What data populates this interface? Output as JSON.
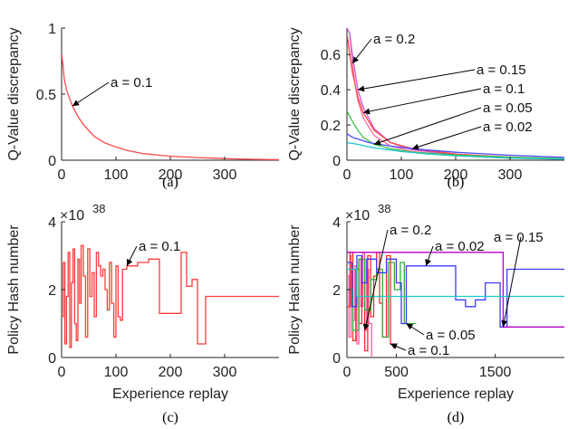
{
  "chart_data": [
    {
      "id": "a",
      "type": "line",
      "title": "(a)",
      "xlabel": "",
      "ylabel": "Q-Value discrepancy",
      "xlim": [
        0,
        400
      ],
      "ylim": [
        0,
        1
      ],
      "xticks": [
        "0",
        "100",
        "200",
        "300"
      ],
      "yticks": [
        "0",
        "0.5",
        "1"
      ],
      "grid": false,
      "series": [
        {
          "name": "a = 0.1",
          "color": "#ff4a4a",
          "x": [
            0,
            2,
            5,
            10,
            20,
            30,
            40,
            60,
            80,
            100,
            120,
            150,
            200,
            250,
            300,
            350,
            400
          ],
          "y": [
            0.8,
            0.74,
            0.61,
            0.52,
            0.41,
            0.33,
            0.27,
            0.18,
            0.13,
            0.1,
            0.075,
            0.05,
            0.03,
            0.02,
            0.012,
            0.007,
            0.004
          ]
        }
      ],
      "annotations": [
        {
          "text": "a = 0.1",
          "target_series": 0
        }
      ]
    },
    {
      "id": "b",
      "type": "line",
      "title": "(b)",
      "xlabel": "",
      "ylabel": "Q-Value discrepancy",
      "xlim": [
        0,
        400
      ],
      "ylim": [
        0,
        0.75
      ],
      "xticks": [
        "0",
        "100",
        "200",
        "300"
      ],
      "yticks": [
        "0",
        "0.2",
        "0.4",
        "0.6"
      ],
      "grid": false,
      "series": [
        {
          "name": "a = 0.2",
          "color": "#ff6e9a",
          "x": [
            0,
            5,
            10,
            15,
            20,
            30,
            50,
            80,
            120,
            200,
            300,
            400
          ],
          "y": [
            0.75,
            0.72,
            0.55,
            0.43,
            0.34,
            0.24,
            0.14,
            0.08,
            0.05,
            0.025,
            0.012,
            0.005
          ]
        },
        {
          "name": "a = 0.15",
          "color": "#c85adb",
          "x": [
            0,
            5,
            10,
            20,
            30,
            50,
            80,
            120,
            200,
            300,
            400
          ],
          "y": [
            0.75,
            0.72,
            0.6,
            0.4,
            0.3,
            0.18,
            0.1,
            0.06,
            0.03,
            0.015,
            0.006
          ]
        },
        {
          "name": "a = 0.1",
          "color": "#ff4444",
          "x": [
            0,
            5,
            10,
            20,
            30,
            50,
            80,
            120,
            200,
            300,
            400
          ],
          "y": [
            0.72,
            0.6,
            0.5,
            0.36,
            0.27,
            0.17,
            0.1,
            0.065,
            0.035,
            0.018,
            0.008
          ]
        },
        {
          "name": "a = 0.05",
          "color": "#3ec24a",
          "x": [
            0,
            5,
            10,
            20,
            30,
            50,
            80,
            120,
            200,
            300,
            400
          ],
          "y": [
            0.28,
            0.25,
            0.22,
            0.17,
            0.13,
            0.09,
            0.065,
            0.045,
            0.03,
            0.017,
            0.01
          ]
        },
        {
          "name": "a = 0.02",
          "color": "#4a4aff",
          "x": [
            0,
            10,
            20,
            40,
            60,
            80,
            120,
            160,
            200,
            300,
            400
          ],
          "y": [
            0.15,
            0.13,
            0.12,
            0.1,
            0.09,
            0.08,
            0.065,
            0.055,
            0.045,
            0.028,
            0.016
          ]
        },
        {
          "name": "",
          "color": "#1fc7c7",
          "x": [
            0,
            20,
            50,
            100,
            150,
            200,
            300,
            400
          ],
          "y": [
            0.1,
            0.09,
            0.07,
            0.05,
            0.035,
            0.025,
            0.012,
            0.006
          ]
        }
      ],
      "annotations": [
        {
          "text": "a = 0.2",
          "target_series": 0
        },
        {
          "text": "a = 0.15",
          "target_series": 1
        },
        {
          "text": "a = 0.1",
          "target_series": 2
        },
        {
          "text": "a = 0.05",
          "target_series": 3
        },
        {
          "text": "a = 0.02",
          "target_series": 4
        }
      ]
    },
    {
      "id": "c",
      "type": "line",
      "title": "(c)",
      "xlabel": "Experience replay",
      "ylabel": "Policy Hash number",
      "y_exponent": "38",
      "y_exponent_base": "×10",
      "xlim": [
        0,
        400
      ],
      "ylim": [
        0,
        4
      ],
      "xticks": [
        "0",
        "100",
        "200",
        "300"
      ],
      "yticks": [
        "0",
        "2",
        "4"
      ],
      "grid": false,
      "series": [
        {
          "name": "a = 0.1",
          "color": "#ff3c3c",
          "step": true,
          "x": [
            0,
            3,
            6,
            9,
            12,
            15,
            18,
            21,
            24,
            27,
            30,
            33,
            36,
            40,
            44,
            48,
            52,
            56,
            60,
            64,
            68,
            72,
            76,
            80,
            84,
            88,
            92,
            96,
            100,
            104,
            108,
            112,
            120,
            140,
            160,
            180,
            200,
            220,
            230,
            235,
            240,
            250,
            260,
            265,
            270,
            280,
            290,
            300,
            400
          ],
          "y": [
            1.2,
            2.8,
            0.4,
            1.8,
            3.1,
            0.3,
            2.2,
            3.2,
            1.0,
            0.5,
            2.9,
            1.6,
            3.3,
            2.4,
            0.6,
            3.2,
            1.8,
            2.5,
            1.2,
            3.1,
            2.7,
            2.4,
            2.6,
            2.0,
            1.4,
            2.8,
            1.6,
            0.6,
            2.7,
            1.2,
            1.1,
            2.6,
            2.7,
            2.8,
            2.9,
            1.3,
            1.3,
            3.1,
            2.1,
            2.1,
            2.3,
            0.4,
            0.4,
            1.8,
            1.8,
            1.8,
            1.8,
            1.8,
            1.8
          ]
        }
      ],
      "annotations": [
        {
          "text": "a = 0.1",
          "target_series": 0
        }
      ]
    },
    {
      "id": "d",
      "type": "line",
      "title": "(d)",
      "xlabel": "Experience replay",
      "ylabel": "Policy Hash number",
      "y_exponent": "38",
      "y_exponent_base": "×10",
      "xlim": [
        0,
        2200
      ],
      "ylim": [
        0,
        4
      ],
      "xticks": [
        "0",
        "500",
        "1500"
      ],
      "yticks": [
        "0",
        "2",
        "4"
      ],
      "grid": false,
      "series": [
        {
          "name": "a = 0.2",
          "color": "#ff5fa0",
          "step": true,
          "x": [
            0,
            20,
            40,
            60,
            80,
            100,
            120,
            140,
            160,
            180,
            200,
            220,
            250
          ],
          "y": [
            2.4,
            0.6,
            3.0,
            1.1,
            2.7,
            0.4,
            2.9,
            1.5,
            3.1,
            0.8,
            2.6,
            1.0,
            0.0
          ]
        },
        {
          "name": "a = 0.1",
          "color": "#ff2b2b",
          "step": true,
          "x": [
            0,
            30,
            60,
            90,
            120,
            150,
            180,
            210,
            240,
            270,
            300,
            330,
            360,
            400,
            440,
            470,
            500
          ],
          "y": [
            1.5,
            3.1,
            0.5,
            2.6,
            1.0,
            2.9,
            0.2,
            3.0,
            1.2,
            2.4,
            3.1,
            1.6,
            0.6,
            3.0,
            0.4,
            0.3,
            0.3
          ]
        },
        {
          "name": "a = 0.05",
          "color": "#2fae3a",
          "step": true,
          "x": [
            0,
            60,
            120,
            180,
            240,
            300,
            360,
            420,
            480,
            540,
            580,
            600,
            700
          ],
          "y": [
            2.0,
            0.8,
            2.9,
            1.4,
            2.3,
            2.6,
            0.6,
            2.8,
            2.0,
            2.8,
            1.0,
            1.0,
            1.0
          ]
        },
        {
          "name": "a = 0.02",
          "color": "#3d3dff",
          "step": true,
          "x": [
            0,
            50,
            100,
            150,
            200,
            300,
            400,
            500,
            550,
            600,
            700,
            800,
            1000,
            1100,
            1200,
            1300,
            1400,
            1480,
            1550,
            1620,
            1700,
            2200
          ],
          "y": [
            2.8,
            1.5,
            3.0,
            2.2,
            2.9,
            2.5,
            2.9,
            2.2,
            1.0,
            2.7,
            2.7,
            2.7,
            2.7,
            1.7,
            1.5,
            1.7,
            2.2,
            2.2,
            0.9,
            2.6,
            2.6,
            2.6
          ]
        },
        {
          "name": "a = 0.15",
          "color": "#b400c8",
          "step": true,
          "x": [
            0,
            100,
            300,
            600,
            900,
            1200,
            1500,
            1580,
            1620,
            2200
          ],
          "y": [
            3.1,
            3.1,
            3.1,
            3.1,
            3.1,
            3.1,
            3.1,
            0.9,
            0.9,
            0.9
          ]
        },
        {
          "name": "",
          "color": "#1fc7c7",
          "step": true,
          "x": [
            0,
            100,
            200,
            300,
            500,
            1000,
            1500,
            2200
          ],
          "y": [
            2.6,
            1.8,
            1.8,
            1.8,
            1.8,
            1.8,
            1.8,
            1.8
          ]
        }
      ],
      "annotations": [
        {
          "text": "a = 0.2",
          "target_series": 0
        },
        {
          "text": "a = 0.02",
          "target_series": 3
        },
        {
          "text": "a = 0.15",
          "target_series": 4
        },
        {
          "text": "a = 0.05",
          "target_series": 2
        },
        {
          "text": "a = 0.1",
          "target_series": 1
        }
      ]
    }
  ]
}
